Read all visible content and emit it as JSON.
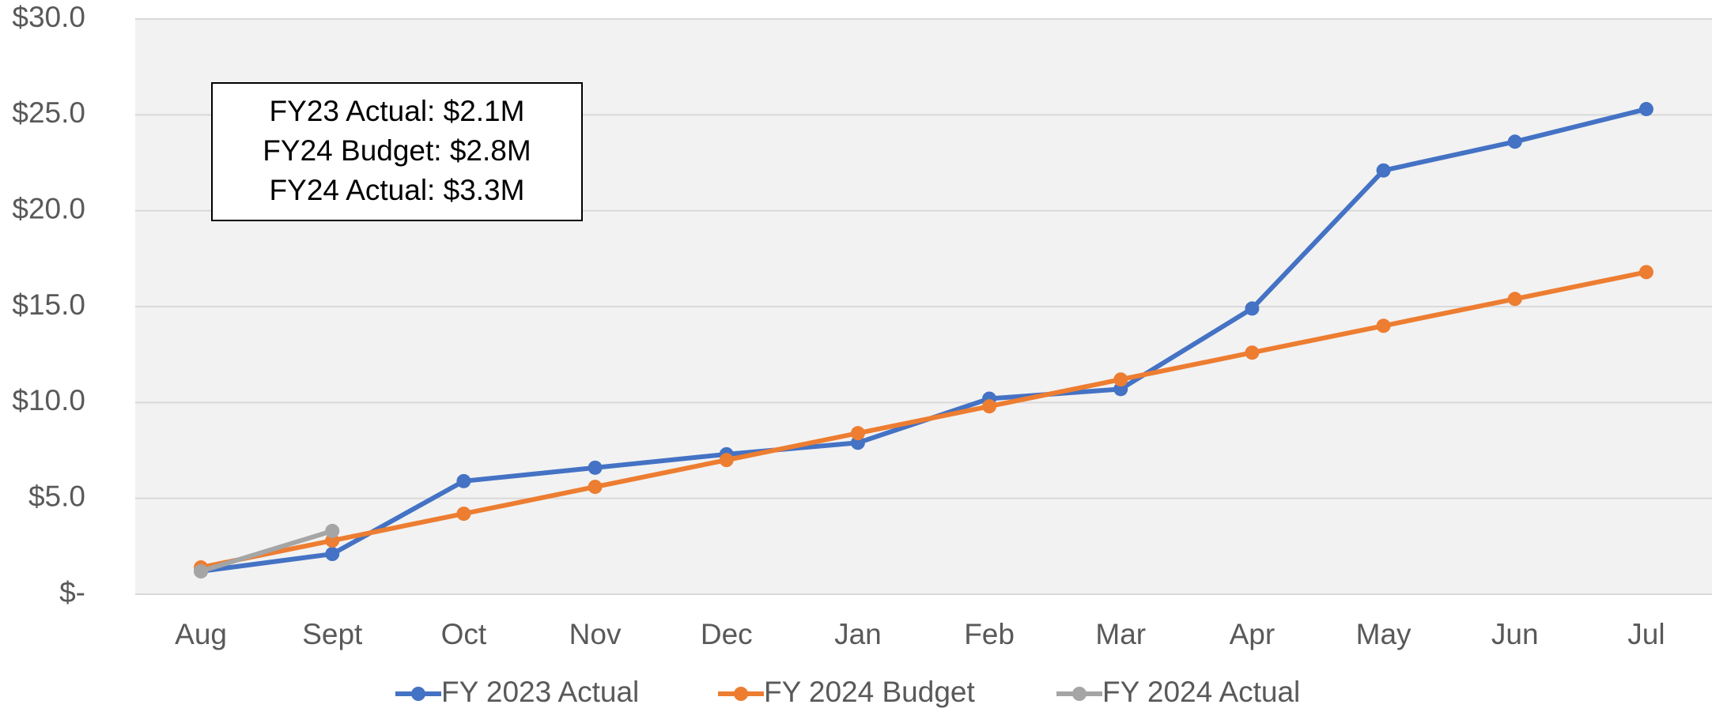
{
  "chart_data": {
    "type": "line",
    "categories": [
      "Aug",
      "Sept",
      "Oct",
      "Nov",
      "Dec",
      "Jan",
      "Feb",
      "Mar",
      "Apr",
      "May",
      "Jun",
      "Jul"
    ],
    "series": [
      {
        "name": "FY 2023 Actual",
        "color": "#4472c4",
        "values": [
          1.2,
          2.1,
          5.9,
          6.6,
          7.3,
          7.9,
          10.2,
          10.7,
          14.9,
          22.1,
          23.6,
          25.3
        ]
      },
      {
        "name": "FY 2024 Budget",
        "color": "#ed7d31",
        "values": [
          1.4,
          2.8,
          4.2,
          5.6,
          7.0,
          8.4,
          9.8,
          11.2,
          12.6,
          14.0,
          15.4,
          16.8
        ]
      },
      {
        "name": "FY 2024 Actual",
        "color": "#a5a5a5",
        "values": [
          1.2,
          3.3,
          null,
          null,
          null,
          null,
          null,
          null,
          null,
          null,
          null,
          null
        ]
      }
    ],
    "ylim": [
      0,
      30
    ],
    "yticks": [
      {
        "value": 0,
        "label": "$-"
      },
      {
        "value": 5,
        "label": "$5.0"
      },
      {
        "value": 10,
        "label": "$10.0"
      },
      {
        "value": 15,
        "label": "$15.0"
      },
      {
        "value": 20,
        "label": "$20.0"
      },
      {
        "value": 25,
        "label": "$25.0"
      },
      {
        "value": 30,
        "label": "$30.0"
      }
    ],
    "grid": true,
    "legend": "bottom",
    "annotation": [
      "FY23 Actual: $2.1M",
      "FY24 Budget: $2.8M",
      "FY24 Actual: $3.3M"
    ]
  }
}
